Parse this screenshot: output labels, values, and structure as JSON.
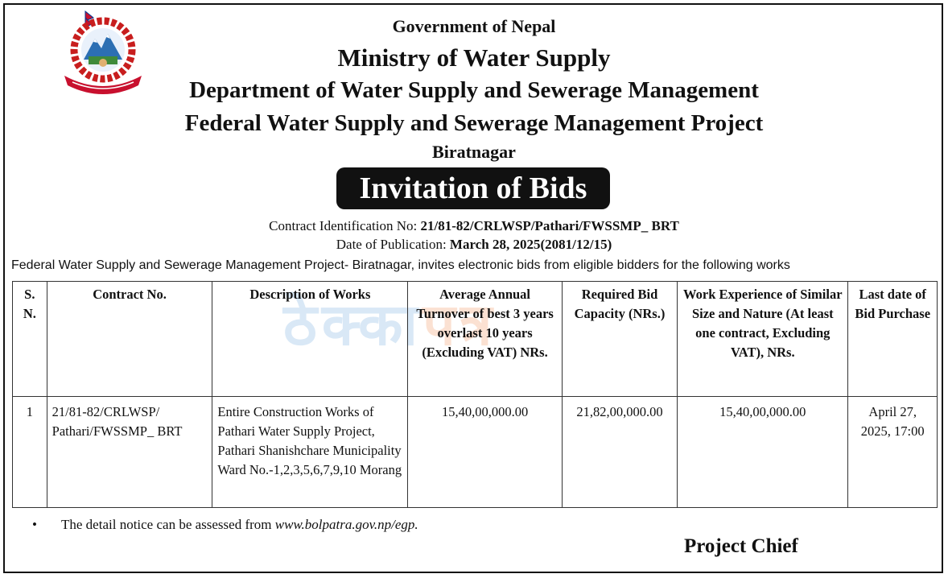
{
  "header": {
    "government": "Government of Nepal",
    "ministry": "Ministry of Water Supply",
    "department": "Department of Water Supply and Sewerage Management",
    "project": "Federal Water Supply and Sewerage Management Project",
    "city": "Biratnagar"
  },
  "emblem": {
    "icon": "nepal-emblem-icon"
  },
  "notice_title": "Invitation of Bids",
  "meta": {
    "contract_label": "Contract Identification No: ",
    "contract_value": "21/81-82/CRLWSP/Pathari/FWSSMP_ BRT",
    "date_label": "Date of Publication: ",
    "date_value": "March 28, 2025(2081/12/15)"
  },
  "intro": "Federal Water Supply and Sewerage Management Project- Biratnagar, invites electronic bids from eligible bidders for the following works",
  "table": {
    "headers": [
      "S. N.",
      "Contract No.",
      "Description of Works",
      "Average Annual Turnover of best 3 years overlast 10 years (Excluding VAT) NRs.",
      "Required Bid Capacity (NRs.)",
      "Work Experience of Similar Size and Nature (At least  one contract, Excluding VAT), NRs.",
      "Last date of Bid Purchase"
    ],
    "rows": [
      {
        "sn": "1",
        "contract_no": "21/81-82/CRLWSP/ Pathari/FWSSMP_ BRT",
        "description": "Entire Construction Works of Pathari Water Supply Project, Pathari Shanishchare Municipality Ward No.-1,2,3,5,6,7,9,10 Morang",
        "turnover": "15,40,00,000.00",
        "bid_capacity": "21,82,00,000.00",
        "experience": "15,40,00,000.00",
        "last_date": "April 27, 2025, 17:00"
      }
    ]
  },
  "note": {
    "text": "The detail notice can be assessed from ",
    "link": "www.bolpatra.gov.np/egp."
  },
  "signoff": "Project Chief",
  "colors": {
    "banner_bg": "#111111",
    "banner_text": "#ffffff"
  }
}
